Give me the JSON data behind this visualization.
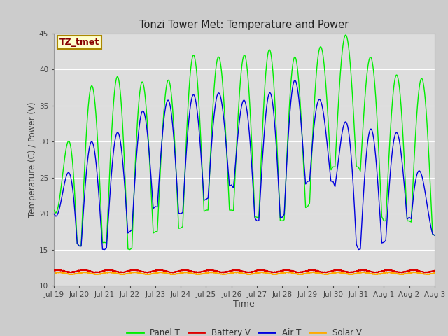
{
  "title": "Tonzi Tower Met: Temperature and Power",
  "xlabel": "Time",
  "ylabel": "Temperature (C) / Power (V)",
  "ylim": [
    10,
    45
  ],
  "yticks": [
    10,
    15,
    20,
    25,
    30,
    35,
    40,
    45
  ],
  "x_tick_labels": [
    "Jul 19",
    "Jul 20",
    "Jul 21",
    "Jul 22",
    "Jul 23",
    "Jul 24",
    "Jul 25",
    "Jul 26",
    "Jul 27",
    "Jul 28",
    "Jul 29",
    "Jul 30",
    "Jul 31",
    "Aug 1",
    "Aug 2",
    "Aug 3"
  ],
  "legend_labels": [
    "Panel T",
    "Battery V",
    "Air T",
    "Solar V"
  ],
  "legend_colors": [
    "#00ee00",
    "#dd0000",
    "#0000dd",
    "#ffaa00"
  ],
  "panel_color": "#00ee00",
  "battery_color": "#dd0000",
  "air_color": "#0000dd",
  "solar_color": "#ffaa00",
  "annotation_text": "TZ_tmet",
  "annotation_box_color": "#ffffcc",
  "annotation_text_color": "#880000",
  "fig_bg_color": "#cccccc",
  "plot_bg_color": "#dddddd",
  "grid_color": "#c0c0c0",
  "n_days": 15,
  "points_per_day": 288,
  "panel_peaks": [
    20.5,
    38.0,
    37.5,
    40.5,
    36.0,
    41.0,
    43.0,
    40.5,
    43.5,
    42.0,
    41.5,
    44.8,
    44.8,
    38.5,
    40.0,
    37.5,
    37.0
  ],
  "panel_troughs": [
    20.5,
    15.5,
    16.0,
    15.0,
    17.5,
    18.0,
    20.5,
    20.5,
    19.5,
    19.0,
    21.0,
    26.5,
    26.5,
    19.0,
    19.0,
    17.0,
    17.0
  ],
  "air_peaks": [
    20.0,
    30.5,
    29.5,
    33.0,
    35.5,
    36.0,
    37.0,
    36.5,
    35.0,
    38.5,
    38.5,
    33.0,
    32.5,
    31.0,
    31.5,
    19.0,
    19.0
  ],
  "air_troughs": [
    20.0,
    15.5,
    15.0,
    17.5,
    21.0,
    20.0,
    22.0,
    24.0,
    19.0,
    19.5,
    24.5,
    24.5,
    15.0,
    16.0,
    19.5,
    17.0,
    17.0
  ],
  "battery_base": 12.0,
  "solar_base": 11.7
}
